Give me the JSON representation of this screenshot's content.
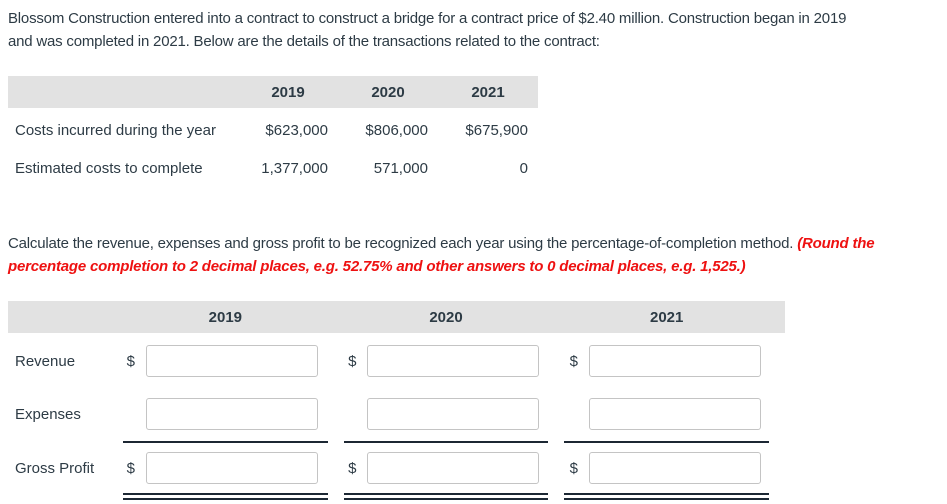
{
  "intro": {
    "lines": [
      "Blossom Construction entered into a contract to construct a bridge for a contract price of $2.40 million. Construction began in 2019",
      "and was completed in 2021. Below are the details of the transactions related to the contract:"
    ]
  },
  "costs_table": {
    "years": [
      "2019",
      "2020",
      "2021"
    ],
    "rows": [
      {
        "label": "Costs incurred during the year",
        "values": [
          "$623,000",
          "$806,000",
          "$675,900"
        ]
      },
      {
        "label": "Estimated costs to complete",
        "values": [
          "1,377,000",
          "571,000",
          "0"
        ]
      }
    ]
  },
  "instructions": {
    "line1_normal": "Calculate the revenue, expenses and gross profit to be recognized each year using the percentage-of-completion method. ",
    "line1_red": "(Round the",
    "line2_red": "percentage completion to 2 decimal places, e.g. 52.75% and other answers to 0 decimal places, e.g. 1,525.)"
  },
  "answer_table": {
    "years": [
      "2019",
      "2020",
      "2021"
    ],
    "row_labels": {
      "revenue": "Revenue",
      "expenses": "Expenses",
      "gross_profit": "Gross Profit"
    },
    "currency_symbol": "$",
    "inputs": {
      "value": "",
      "placeholder": ""
    }
  },
  "colors": {
    "text": "#2d3b45",
    "accent_red": "#ee1111",
    "table_header_bg": "#e2e2e2",
    "input_border": "#c4c4c4",
    "rule": "#1c2733"
  }
}
